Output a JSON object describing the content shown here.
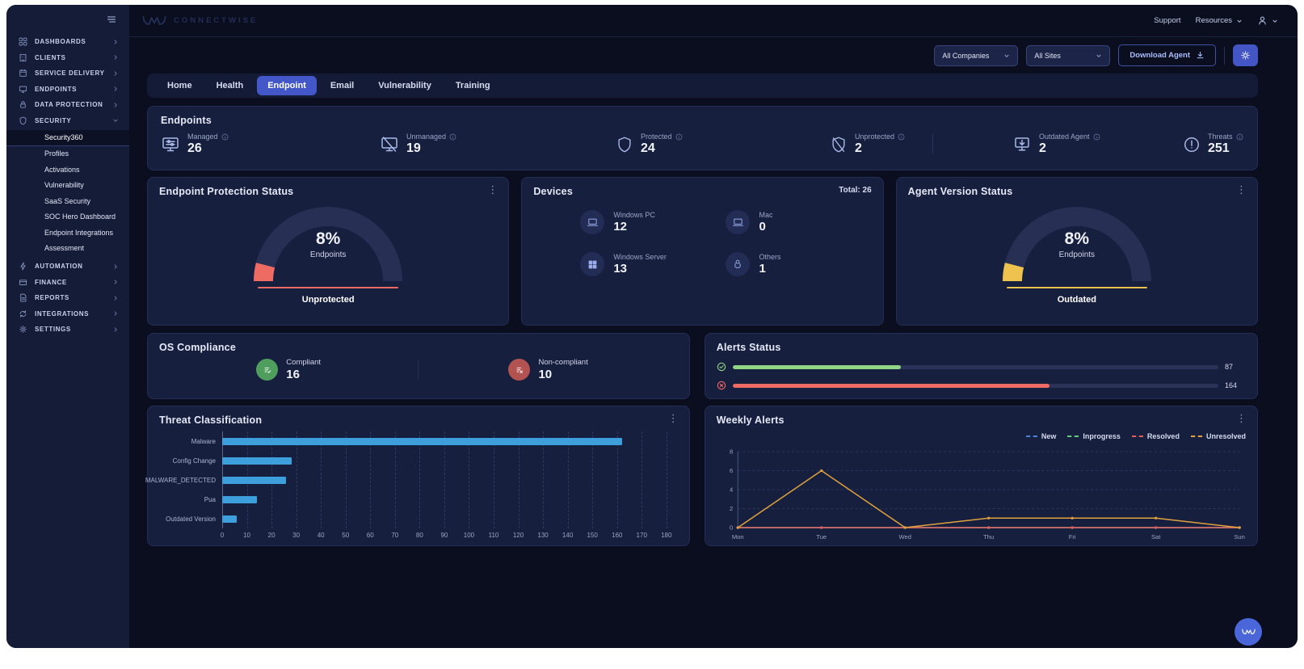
{
  "window": {
    "brand": "CONNECTWISE",
    "support": "Support",
    "resources": "Resources"
  },
  "sidebar": {
    "items": [
      {
        "key": "dashboards",
        "label": "DASHBOARDS",
        "icon": "grid"
      },
      {
        "key": "clients",
        "label": "CLIENTS",
        "icon": "building"
      },
      {
        "key": "service-delivery",
        "label": "SERVICE DELIVERY",
        "icon": "calendar"
      },
      {
        "key": "endpoints",
        "label": "ENDPOINTS",
        "icon": "monitor"
      },
      {
        "key": "data-protection",
        "label": "DATA PROTECTION",
        "icon": "lock"
      },
      {
        "key": "security",
        "label": "SECURITY",
        "icon": "shield",
        "expanded": true
      },
      {
        "key": "automation",
        "label": "AUTOMATION",
        "icon": "bolt"
      },
      {
        "key": "finance",
        "label": "FINANCE",
        "icon": "card"
      },
      {
        "key": "reports",
        "label": "REPORTS",
        "icon": "file"
      },
      {
        "key": "integrations",
        "label": "INTEGRATIONS",
        "icon": "loop"
      },
      {
        "key": "settings",
        "label": "SETTINGS",
        "icon": "gear"
      }
    ],
    "security_sub": [
      {
        "label": "Security360",
        "active": true
      },
      {
        "label": "Profiles"
      },
      {
        "label": "Activations"
      },
      {
        "label": "Vulnerability"
      },
      {
        "label": "SaaS Security"
      },
      {
        "label": "SOC Hero Dashboard"
      },
      {
        "label": "Endpoint Integrations"
      },
      {
        "label": "Assessment"
      }
    ]
  },
  "filters": {
    "companies": "All Companies",
    "sites": "All Sites",
    "download_agent": "Download Agent"
  },
  "tabs": {
    "items": [
      "Home",
      "Health",
      "Endpoint",
      "Email",
      "Vulnerability",
      "Training"
    ],
    "active": "Endpoint"
  },
  "endpoints": {
    "title": "Endpoints",
    "stats": [
      {
        "label": "Managed",
        "value": "26"
      },
      {
        "label": "Unmanaged",
        "value": "19"
      },
      {
        "label": "Protected",
        "value": "24"
      },
      {
        "label": "Unprotected",
        "value": "2"
      },
      {
        "label": "Outdated Agent",
        "value": "2"
      },
      {
        "label": "Threats",
        "value": "251"
      }
    ]
  },
  "protection_status": {
    "title": "Endpoint Protection Status",
    "percent": "8%",
    "unit": "Endpoints",
    "status": "Unprotected",
    "fraction": 0.08,
    "color": "#ee6b63"
  },
  "devices": {
    "title": "Devices",
    "total": "Total: 26",
    "items": [
      {
        "label": "Windows PC",
        "value": "12"
      },
      {
        "label": "Mac",
        "value": "0"
      },
      {
        "label": "Windows Server",
        "value": "13"
      },
      {
        "label": "Others",
        "value": "1"
      }
    ]
  },
  "agent_version": {
    "title": "Agent Version Status",
    "percent": "8%",
    "unit": "Endpoints",
    "status": "Outdated",
    "fraction": 0.08,
    "color": "#eec24e"
  },
  "os_compliance": {
    "title": "OS Compliance",
    "items": [
      {
        "label": "Compliant",
        "value": "16",
        "color": "#4f9e5e"
      },
      {
        "label": "Non-compliant",
        "value": "10",
        "color": "#b25352"
      }
    ]
  },
  "alerts_status": {
    "title": "Alerts Status",
    "max": 251,
    "rows": [
      {
        "kind": "resolved",
        "value": 87,
        "color": "#8fd585"
      },
      {
        "kind": "unresolved",
        "value": 164,
        "color": "#ef6b66"
      }
    ]
  },
  "chart_data": [
    {
      "id": "threat_classification",
      "type": "bar",
      "orientation": "horizontal",
      "title": "Threat Classification",
      "categories": [
        "Malware",
        "Config Change",
        "MALWARE_DETECTED",
        "Pua",
        "Outdated Version"
      ],
      "values": [
        162,
        28,
        26,
        14,
        6
      ],
      "xlim": [
        0,
        180
      ],
      "x_ticks": [
        0,
        10,
        20,
        30,
        40,
        50,
        60,
        70,
        80,
        90,
        100,
        110,
        120,
        130,
        140,
        150,
        160,
        170,
        180
      ],
      "bar_color": "#3da0dc",
      "grid": "dashed-vertical",
      "xlabel": "",
      "ylabel": ""
    },
    {
      "id": "weekly_alerts",
      "type": "line",
      "title": "Weekly Alerts",
      "x": [
        "Mon",
        "Tue",
        "Wed",
        "Thu",
        "Fri",
        "Sat",
        "Sun"
      ],
      "series": [
        {
          "name": "New",
          "color": "#4f7fd9",
          "values": [
            0,
            0,
            0,
            0,
            0,
            0,
            0
          ]
        },
        {
          "name": "Inprogress",
          "color": "#62c77f",
          "values": [
            0,
            0,
            0,
            0,
            0,
            0,
            0
          ]
        },
        {
          "name": "Resolved",
          "color": "#e25c5c",
          "values": [
            0,
            0,
            0,
            0,
            0,
            0,
            0
          ]
        },
        {
          "name": "Unresolved",
          "color": "#e0a23e",
          "values": [
            0,
            6,
            0,
            1,
            1,
            1,
            0
          ]
        }
      ],
      "ylim": [
        0,
        8
      ],
      "y_ticks": [
        0,
        2,
        4,
        6,
        8
      ],
      "grid": "dashed-horizontal",
      "legend_position": "top-right"
    }
  ]
}
